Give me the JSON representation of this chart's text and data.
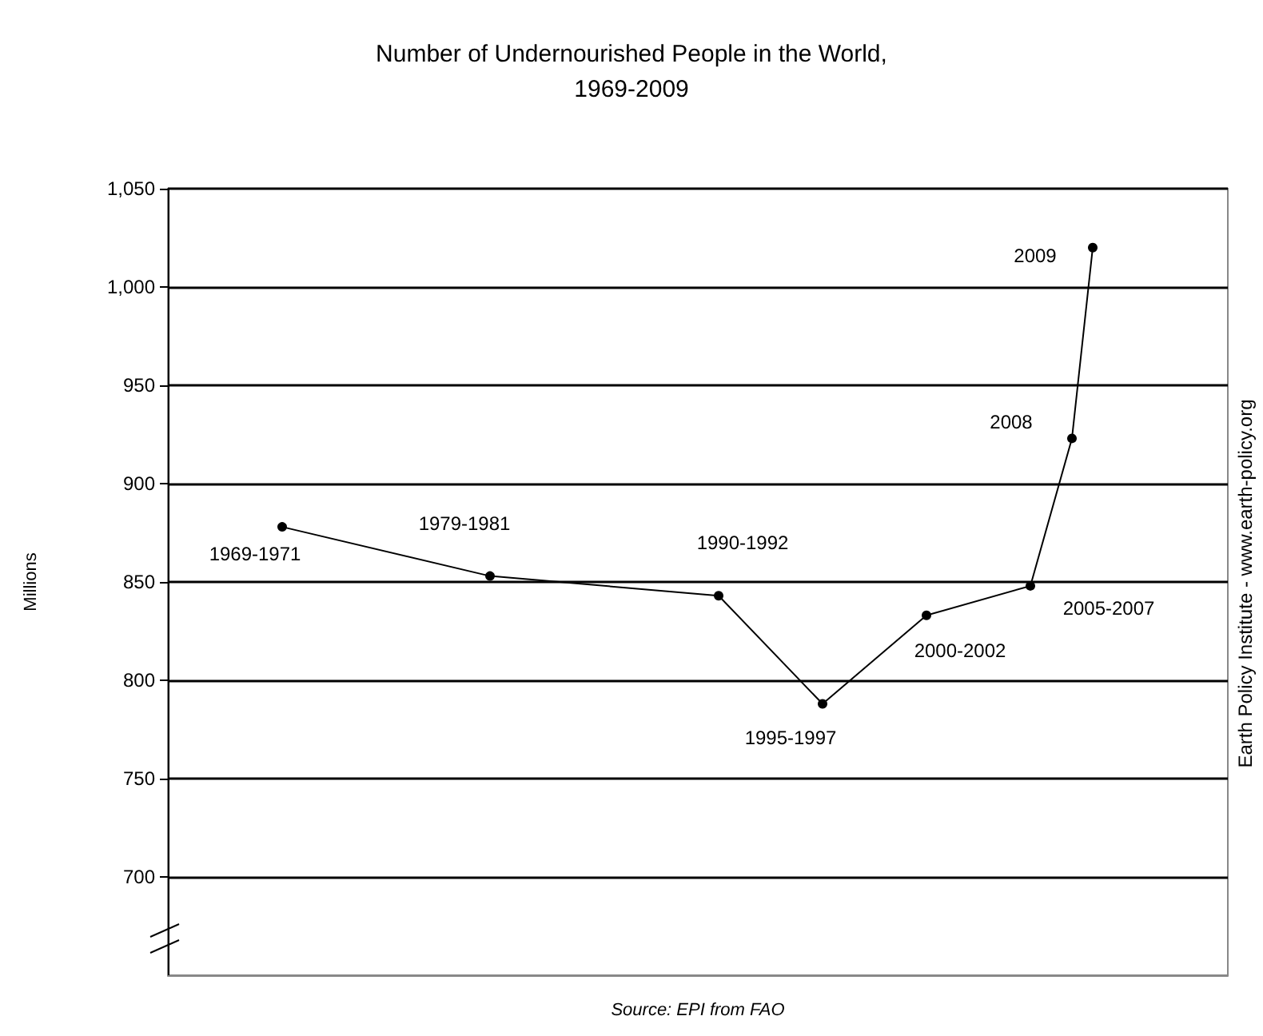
{
  "chart_data": {
    "type": "line",
    "title": "Number of Undernourished People in the World,\n1969-2009",
    "ylabel": "Millions",
    "categories": [
      null,
      null,
      null,
      null,
      null,
      null,
      null,
      null,
      null,
      null,
      null,
      null,
      null,
      null,
      null,
      null,
      null,
      null,
      null,
      null,
      null,
      null,
      null,
      null,
      null,
      null,
      null,
      null,
      null,
      null,
      null,
      null,
      null,
      null,
      null,
      null,
      null,
      null,
      null,
      null,
      null,
      null,
      null,
      null,
      null,
      null,
      null,
      null,
      null,
      null,
      null
    ],
    "values": [
      null,
      null,
      null,
      null,
      null,
      878,
      null,
      null,
      null,
      null,
      null,
      null,
      null,
      null,
      null,
      853,
      null,
      null,
      null,
      null,
      null,
      null,
      null,
      null,
      null,
      null,
      843,
      null,
      null,
      null,
      null,
      788,
      null,
      null,
      null,
      null,
      833,
      null,
      null,
      null,
      null,
      848,
      null,
      923,
      1020,
      null,
      null,
      null,
      null,
      null,
      null
    ],
    "color": "#000000",
    "ylim": [
      650,
      1050
    ],
    "yticks": [
      700,
      750,
      800,
      850,
      900,
      950,
      {
        "value": 1000,
        "label": "1,000"
      },
      {
        "value": 1050,
        "label": "1,050"
      }
    ],
    "tick_labels": "y",
    "grid": "y",
    "marker": "circle",
    "line_style": "solid",
    "annotations": [
      "1969-1971",
      "1979-1981",
      "1990-1992",
      "1995-1997",
      "2000-2002",
      "2005-2007",
      "2008",
      "2009",
      "Source: EPI from FAO",
      "Earth Policy Institute - www.earth-policy.org"
    ]
  }
}
